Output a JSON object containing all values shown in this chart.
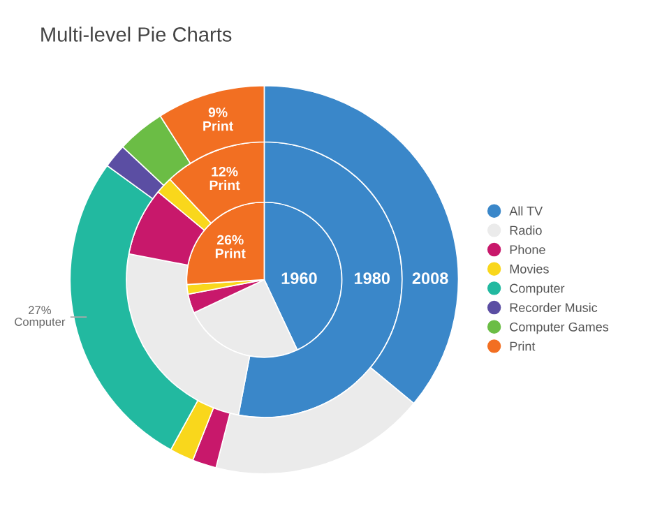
{
  "chart_data": {
    "type": "pie",
    "title": "Multi-level Pie Charts",
    "categories": [
      "All TV",
      "Radio",
      "Phone",
      "Movies",
      "Computer",
      "Recorder Music",
      "Computer Games",
      "Print"
    ],
    "colors": [
      "#3a87c9",
      "#ebebeb",
      "#c8186b",
      "#f9d71c",
      "#22b9a0",
      "#5b4ea3",
      "#6bbd45",
      "#f26f22"
    ],
    "series": [
      {
        "name": "1960",
        "values": [
          43,
          25,
          4,
          2,
          null,
          null,
          null,
          26
        ],
        "value_labels": [
          null,
          null,
          null,
          null,
          null,
          null,
          null,
          "26%\nPrint"
        ]
      },
      {
        "name": "1980",
        "values": [
          53,
          25,
          8,
          2,
          null,
          null,
          null,
          12
        ],
        "value_labels": [
          null,
          null,
          null,
          null,
          null,
          null,
          null,
          "12%\nPrint"
        ]
      },
      {
        "name": "2008",
        "values": [
          36,
          18,
          2,
          2,
          27,
          2,
          4,
          9
        ],
        "value_labels": [
          null,
          null,
          null,
          null,
          "27%\nComputer",
          null,
          null,
          "9%\nPrint"
        ]
      }
    ],
    "legend": "right"
  }
}
